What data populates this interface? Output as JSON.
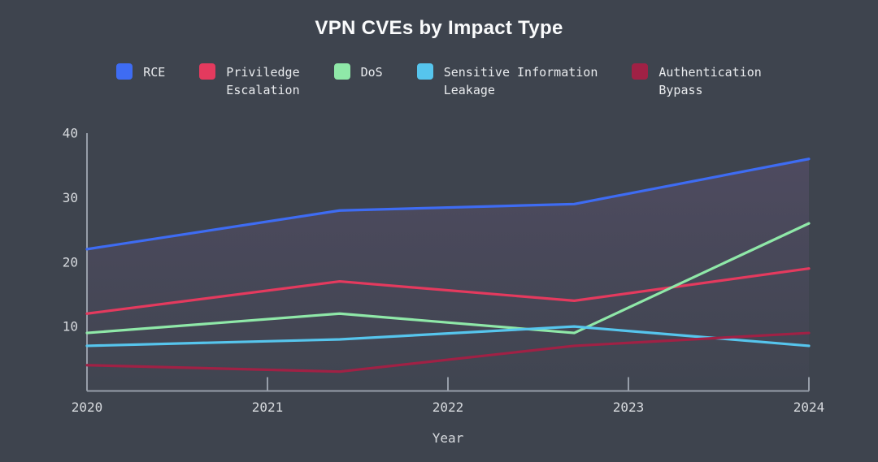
{
  "title": "VPN CVEs by Impact Type",
  "colors": {
    "background": "#3e444e",
    "axis": "#979ea9",
    "tick_label": "#d8dbdf",
    "title_text": "#fafbfc",
    "legend_text": "#e9ebee",
    "area_fill": "#9669af"
  },
  "legend": {
    "items": [
      {
        "label": "RCE",
        "color": "#3e6cf3"
      },
      {
        "label": "Priviledge\nEscalation",
        "color": "#e43a5e"
      },
      {
        "label": "DoS",
        "color": "#8fe8a8"
      },
      {
        "label": "Sensitive Information\nLeakage",
        "color": "#56c5ed"
      },
      {
        "label": "Authentication\nBypass",
        "color": "#a02145"
      }
    ]
  },
  "chart_data": {
    "type": "line",
    "title": "VPN CVEs by Impact Type",
    "xlabel": "Year",
    "ylabel": "",
    "x": [
      2020,
      2021.4,
      2022.7,
      2024
    ],
    "series": [
      {
        "name": "RCE",
        "color": "#3e6cf3",
        "values": [
          22,
          28,
          29,
          36
        ],
        "area_fill": true
      },
      {
        "name": "Priviledge Escalation",
        "color": "#e43a5e",
        "values": [
          12,
          17,
          14,
          19
        ]
      },
      {
        "name": "DoS",
        "color": "#8fe8a8",
        "values": [
          9,
          12,
          9,
          26
        ]
      },
      {
        "name": "Sensitive Information Leakage",
        "color": "#56c5ed",
        "values": [
          7,
          8,
          10,
          7
        ]
      },
      {
        "name": "Authentication Bypass",
        "color": "#a02145",
        "values": [
          4,
          3,
          7,
          9
        ]
      }
    ],
    "xticks": [
      2020,
      2021,
      2022,
      2023,
      2024
    ],
    "yticks": [
      10,
      20,
      30,
      40
    ],
    "xlim": [
      2020,
      2024
    ],
    "ylim": [
      0,
      40
    ],
    "grid": false,
    "legend_position": "top"
  }
}
